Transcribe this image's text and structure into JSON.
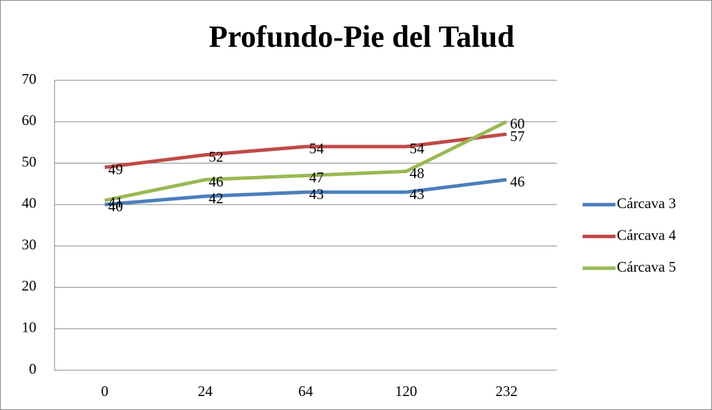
{
  "chart_data": {
    "type": "line",
    "title": "Profundo-Pie del Talud",
    "categories": [
      "0",
      "24",
      "64",
      "120",
      "232"
    ],
    "series": [
      {
        "name": "Cárcava 3",
        "color": "#4a7ebb",
        "values": [
          40,
          42,
          43,
          43,
          46
        ]
      },
      {
        "name": "Cárcava 4",
        "color": "#be4b48",
        "values": [
          49,
          52,
          54,
          54,
          57
        ]
      },
      {
        "name": "Cárcava 5",
        "color": "#98b954",
        "values": [
          41,
          46,
          47,
          48,
          60
        ]
      }
    ],
    "ylim": [
      0,
      70
    ],
    "yticks": [
      0,
      10,
      20,
      30,
      40,
      50,
      60,
      70
    ],
    "grid": true,
    "legend": "right"
  }
}
